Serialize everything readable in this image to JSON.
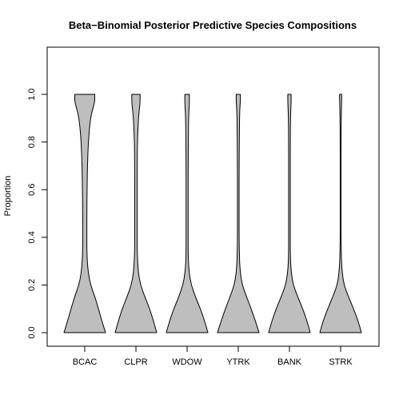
{
  "chart_data": {
    "type": "violin",
    "title": "Beta−Binomial Posterior Predictive Species Compositions",
    "xlabel": "",
    "ylabel": "Proportion",
    "ylim": [
      0,
      1
    ],
    "yticks": [
      "0.0",
      "0.2",
      "0.4",
      "0.6",
      "0.8",
      "1.0"
    ],
    "categories": [
      "BCAC",
      "CLPR",
      "WDOW",
      "YTRK",
      "BANK",
      "STRK"
    ],
    "fill_color": "#bebebe",
    "density_y": [
      0.0,
      0.05,
      0.1,
      0.15,
      0.2,
      0.25,
      0.3,
      0.35,
      0.4,
      0.5,
      0.6,
      0.7,
      0.8,
      0.9,
      0.95,
      0.97,
      1.0
    ],
    "density_widths": [
      [
        1.0,
        0.82,
        0.66,
        0.49,
        0.28,
        0.17,
        0.12,
        0.1,
        0.1,
        0.1,
        0.11,
        0.13,
        0.17,
        0.27,
        0.42,
        0.48,
        0.48
      ],
      [
        1.0,
        0.84,
        0.66,
        0.43,
        0.22,
        0.12,
        0.08,
        0.06,
        0.06,
        0.06,
        0.06,
        0.06,
        0.07,
        0.12,
        0.18,
        0.2,
        0.2
      ],
      [
        1.0,
        0.84,
        0.64,
        0.4,
        0.2,
        0.1,
        0.06,
        0.05,
        0.05,
        0.05,
        0.05,
        0.05,
        0.06,
        0.07,
        0.1,
        0.11,
        0.11
      ],
      [
        1.0,
        0.82,
        0.62,
        0.4,
        0.19,
        0.1,
        0.06,
        0.05,
        0.04,
        0.04,
        0.04,
        0.04,
        0.05,
        0.06,
        0.08,
        0.1,
        0.1
      ],
      [
        1.0,
        0.84,
        0.64,
        0.4,
        0.18,
        0.09,
        0.05,
        0.04,
        0.04,
        0.04,
        0.04,
        0.04,
        0.04,
        0.05,
        0.07,
        0.08,
        0.08
      ],
      [
        1.0,
        0.84,
        0.62,
        0.38,
        0.16,
        0.08,
        0.04,
        0.03,
        0.02,
        0.02,
        0.02,
        0.02,
        0.02,
        0.03,
        0.04,
        0.05,
        0.05
      ]
    ]
  }
}
